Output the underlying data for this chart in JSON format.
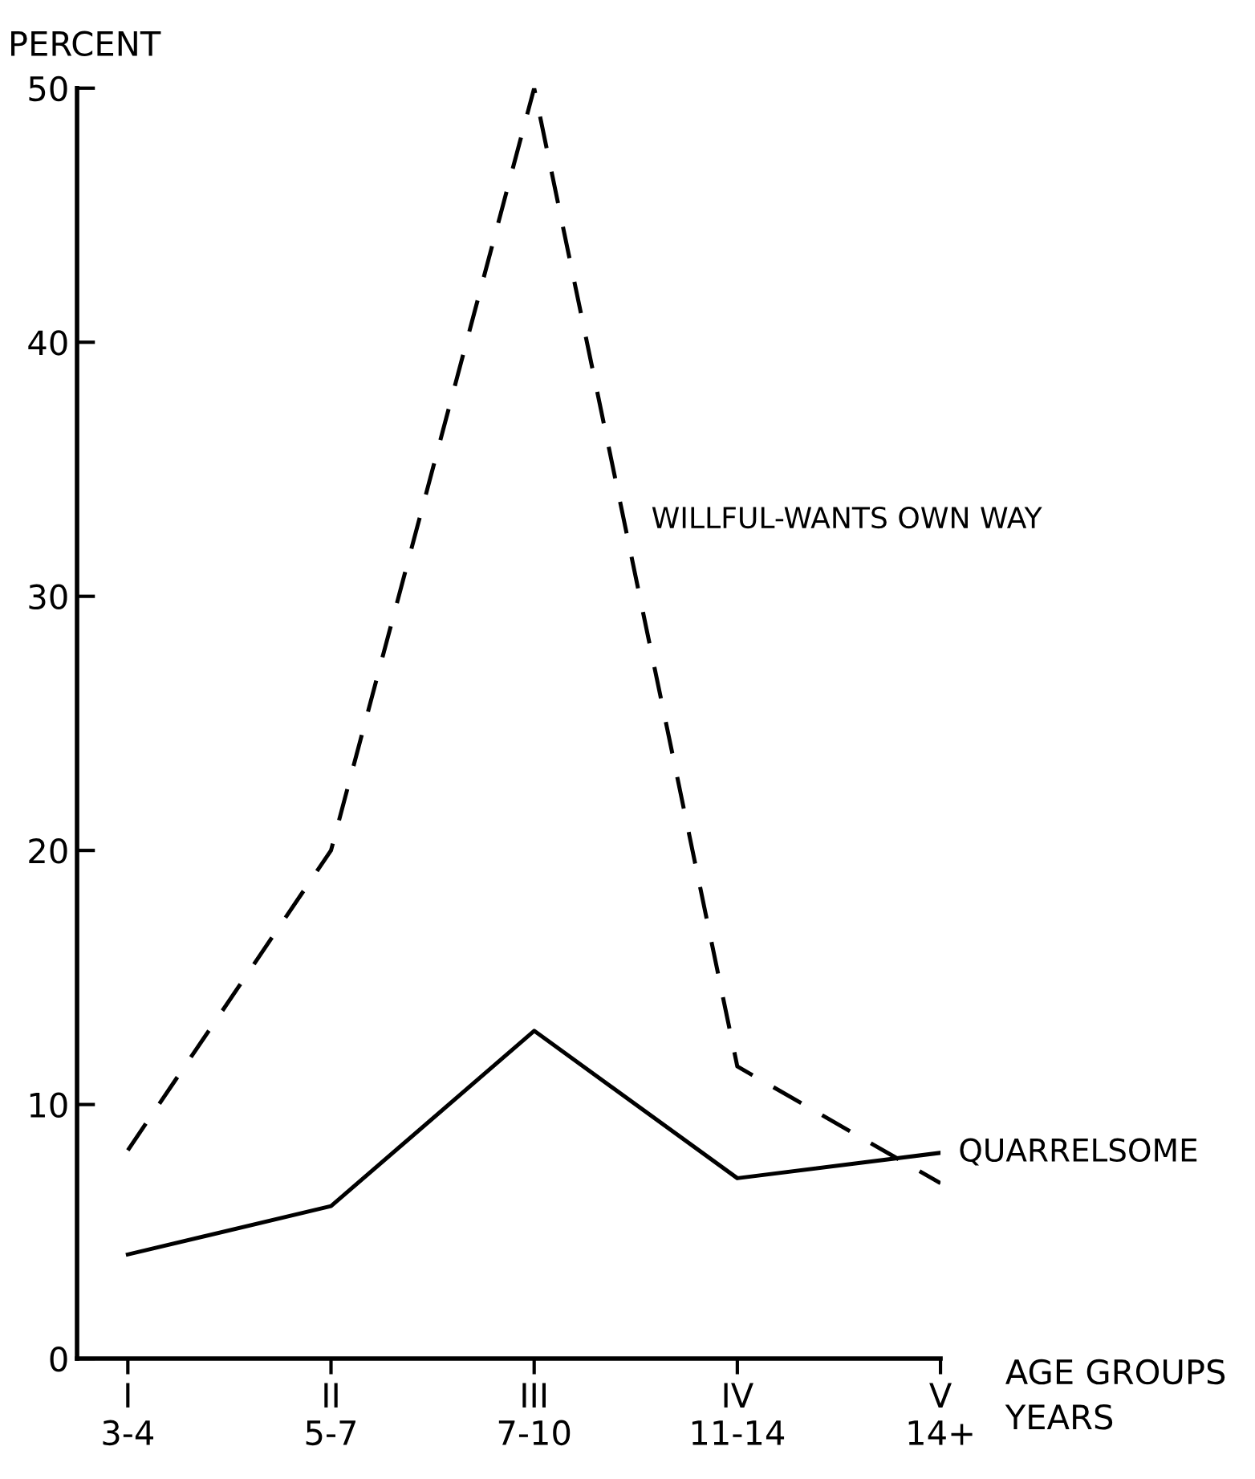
{
  "chart_data": {
    "type": "line",
    "xlabel": "AGE GROUPS\nYEARS",
    "ylabel": "PERCENT",
    "categories": [
      "I\n3-4",
      "II\n5-7",
      "III\n7-10",
      "IV\n11-14",
      "V\n14+"
    ],
    "series": [
      {
        "name": "WILLFUL-WANTS OWN WAY",
        "color": "#000000",
        "line_style": "dashed",
        "values": [
          8.2,
          20,
          50,
          11.5,
          6.9
        ]
      },
      {
        "name": "QUARRELSOME",
        "color": "#000000",
        "line_style": "solid",
        "values": [
          4.1,
          6.0,
          12.9,
          7.1,
          8.1
        ]
      }
    ],
    "ylim": [
      0,
      50
    ],
    "yticks": [
      0,
      10,
      20,
      30,
      40,
      50
    ],
    "grid": false,
    "legend": false,
    "marker": "none"
  }
}
